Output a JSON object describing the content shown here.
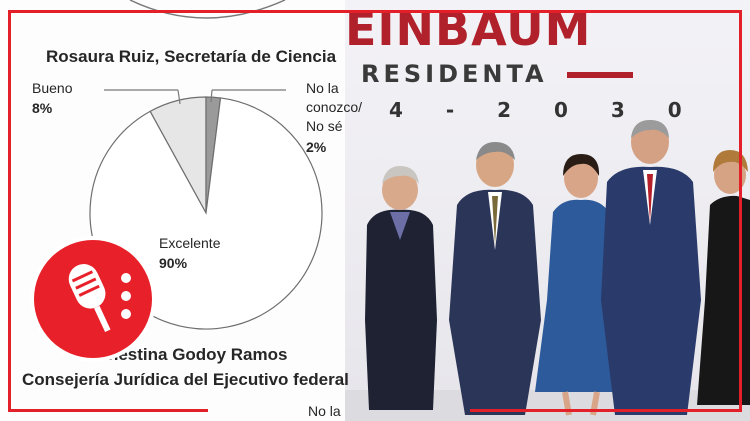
{
  "chart_data": {
    "type": "pie",
    "title": "Rosaura Ruiz, Secretaría de Ciencia",
    "slices": [
      {
        "label": "Excelente",
        "value": 90,
        "value_label": "90%",
        "color": "#ffffff"
      },
      {
        "label": "Bueno",
        "value": 8,
        "value_label": "8%",
        "color": "#e6e6e6"
      },
      {
        "label": "No la conozco/ No sé",
        "value": 2,
        "value_label": "2%",
        "color": "#9a9a9a"
      }
    ],
    "next_title_lines": [
      "Ernestina Godoy Ramos",
      "Consejería Jurídica del Ejecutivo federal"
    ],
    "next_partial_label": "No la"
  },
  "labels": {
    "bueno": "Bueno",
    "bueno_value": "8%",
    "nolaconozco_lines": [
      "No la",
      "conozco/",
      "No sé"
    ],
    "nolaconozco_value": "2%",
    "excelente": "Excelente",
    "excelente_value": "90%"
  },
  "photo": {
    "banner_title": "EINBAUM",
    "banner_sub": "RESIDENTA",
    "banner_years": "4 - 2 0 3 0"
  },
  "colors": {
    "accent": "#e3202a",
    "banner_red": "#b0212c",
    "logo_red": "#e8202a"
  },
  "icons": {
    "logo": "microphone-icon"
  }
}
